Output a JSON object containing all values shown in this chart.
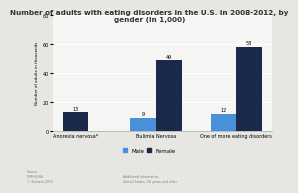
{
  "title": "Number of adults with eating disorders in the U.S. in 2008-2012, by\ngender (in 1,000)",
  "categories": [
    "Anorexia nervosa*",
    "Bulimia Nervosa",
    "One of more eating disorders"
  ],
  "male_values": [
    0,
    9,
    12
  ],
  "female_values": [
    13,
    49,
    58
  ],
  "male_color": "#4a90d9",
  "female_color": "#1b2a4a",
  "ylim": [
    0,
    80
  ],
  "yticks": [
    0,
    20,
    40,
    60,
    80
  ],
  "ylabel": "Number of adults in thousands",
  "bar_width": 0.32,
  "background_color": "#e8e6e2",
  "plot_bg_color": "#f5f5f3",
  "title_fontsize": 5.5,
  "source_text": "Source:\nNIMH/USA\n© Statista 2015",
  "additional_text": "Additional Information:\nUnited States, 18 years and older"
}
